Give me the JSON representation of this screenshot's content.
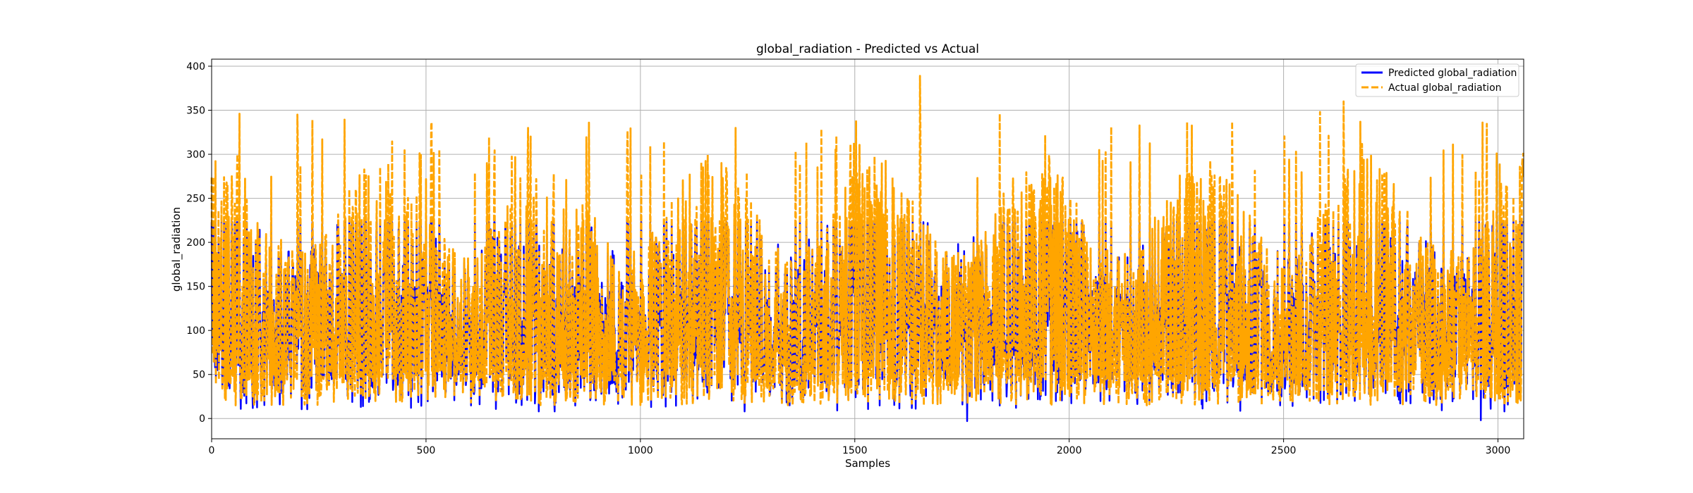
{
  "chart_data": {
    "type": "line",
    "title": "global_radiation - Predicted vs Actual",
    "xlabel": "Samples",
    "ylabel": "global_radiation",
    "xlim": [
      0,
      3060
    ],
    "ylim": [
      -23,
      408
    ],
    "xticks": [
      0,
      500,
      1000,
      1500,
      2000,
      2500,
      3000
    ],
    "yticks": [
      0,
      50,
      100,
      150,
      200,
      250,
      300,
      350,
      400
    ],
    "grid": true,
    "legend_position": "upper right",
    "n_samples": 3060,
    "series": [
      {
        "name": "Predicted global_radiation",
        "color": "#0000ff",
        "style": "solid",
        "summary": {
          "min": -3,
          "max": 238,
          "typical_low": 20,
          "typical_high": 215
        }
      },
      {
        "name": "Actual global_radiation",
        "color": "#ffa500",
        "style": "dashed",
        "summary": {
          "min": 12,
          "max": 389,
          "typical_low": 15,
          "typical_high": 300
        }
      }
    ],
    "notable_points": [
      {
        "series": "Actual global_radiation",
        "x": 1652,
        "y": 389
      },
      {
        "series": "Actual global_radiation",
        "x": 2640,
        "y": 360
      },
      {
        "series": "Actual global_radiation",
        "x": 65,
        "y": 346
      },
      {
        "series": "Actual global_radiation",
        "x": 200,
        "y": 345
      },
      {
        "series": "Actual global_radiation",
        "x": 1838,
        "y": 346
      },
      {
        "series": "Actual global_radiation",
        "x": 2585,
        "y": 348
      },
      {
        "series": "Predicted global_radiation",
        "x": 1762,
        "y": -3
      },
      {
        "series": "Predicted global_radiation",
        "x": 2960,
        "y": -2
      }
    ]
  }
}
